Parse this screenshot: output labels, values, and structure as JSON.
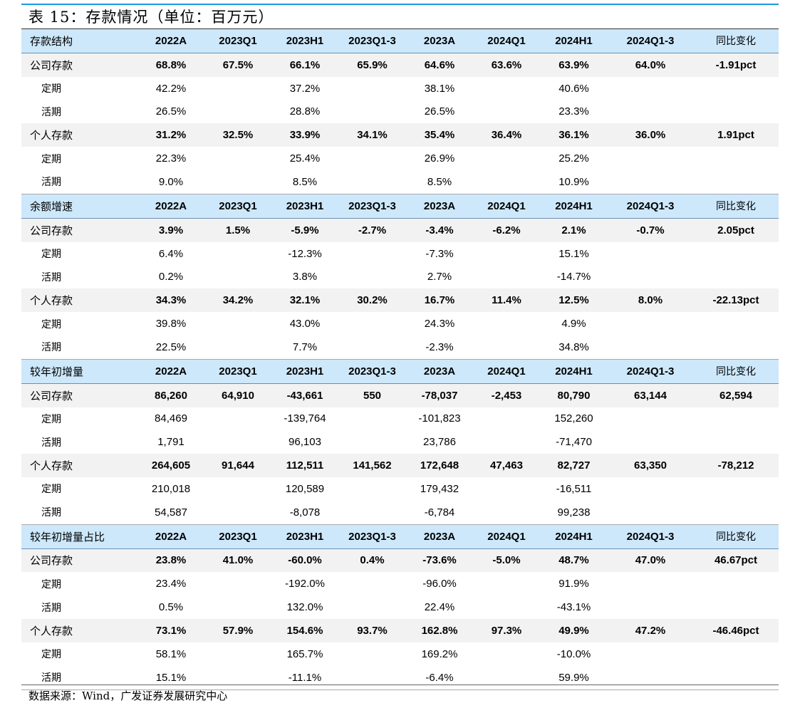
{
  "title": "表 15：存款情况（单位：百万元）",
  "columns": [
    "2022A",
    "2023Q1",
    "2023H1",
    "2023Q1-3",
    "2023A",
    "2024Q1",
    "2024H1",
    "2024Q1-3",
    "同比变化"
  ],
  "sections": [
    {
      "header": "存款结构",
      "rows": [
        {
          "type": "main",
          "label": "公司存款",
          "values": [
            "68.8%",
            "67.5%",
            "66.1%",
            "65.9%",
            "64.6%",
            "63.6%",
            "63.9%",
            "64.0%",
            "-1.91pct"
          ]
        },
        {
          "type": "sub",
          "label": "定期",
          "values": [
            "42.2%",
            "",
            "37.2%",
            "",
            "38.1%",
            "",
            "40.6%",
            "",
            ""
          ]
        },
        {
          "type": "sub",
          "label": "活期",
          "values": [
            "26.5%",
            "",
            "28.8%",
            "",
            "26.5%",
            "",
            "23.3%",
            "",
            ""
          ]
        },
        {
          "type": "main",
          "label": "个人存款",
          "values": [
            "31.2%",
            "32.5%",
            "33.9%",
            "34.1%",
            "35.4%",
            "36.4%",
            "36.1%",
            "36.0%",
            "1.91pct"
          ]
        },
        {
          "type": "sub",
          "label": "定期",
          "values": [
            "22.3%",
            "",
            "25.4%",
            "",
            "26.9%",
            "",
            "25.2%",
            "",
            ""
          ]
        },
        {
          "type": "sub",
          "label": "活期",
          "values": [
            "9.0%",
            "",
            "8.5%",
            "",
            "8.5%",
            "",
            "10.9%",
            "",
            ""
          ]
        }
      ]
    },
    {
      "header": "余额增速",
      "rows": [
        {
          "type": "main",
          "label": "公司存款",
          "values": [
            "3.9%",
            "1.5%",
            "-5.9%",
            "-2.7%",
            "-3.4%",
            "-6.2%",
            "2.1%",
            "-0.7%",
            "2.05pct"
          ]
        },
        {
          "type": "sub",
          "label": "定期",
          "values": [
            "6.4%",
            "",
            "-12.3%",
            "",
            "-7.3%",
            "",
            "15.1%",
            "",
            ""
          ]
        },
        {
          "type": "sub",
          "label": "活期",
          "values": [
            "0.2%",
            "",
            "3.8%",
            "",
            "2.7%",
            "",
            "-14.7%",
            "",
            ""
          ]
        },
        {
          "type": "main",
          "label": "个人存款",
          "values": [
            "34.3%",
            "34.2%",
            "32.1%",
            "30.2%",
            "16.7%",
            "11.4%",
            "12.5%",
            "8.0%",
            "-22.13pct"
          ]
        },
        {
          "type": "sub",
          "label": "定期",
          "values": [
            "39.8%",
            "",
            "43.0%",
            "",
            "24.3%",
            "",
            "4.9%",
            "",
            ""
          ]
        },
        {
          "type": "sub",
          "label": "活期",
          "values": [
            "22.5%",
            "",
            "7.7%",
            "",
            "-2.3%",
            "",
            "34.8%",
            "",
            ""
          ]
        }
      ]
    },
    {
      "header": "较年初增量",
      "rows": [
        {
          "type": "main",
          "label": "公司存款",
          "values": [
            "86,260",
            "64,910",
            "-43,661",
            "550",
            "-78,037",
            "-2,453",
            "80,790",
            "63,144",
            "62,594"
          ]
        },
        {
          "type": "sub",
          "label": "定期",
          "values": [
            "84,469",
            "",
            "-139,764",
            "",
            "-101,823",
            "",
            "152,260",
            "",
            ""
          ]
        },
        {
          "type": "sub",
          "label": "活期",
          "values": [
            "1,791",
            "",
            "96,103",
            "",
            "23,786",
            "",
            "-71,470",
            "",
            ""
          ]
        },
        {
          "type": "main",
          "label": "个人存款",
          "values": [
            "264,605",
            "91,644",
            "112,511",
            "141,562",
            "172,648",
            "47,463",
            "82,727",
            "63,350",
            "-78,212"
          ]
        },
        {
          "type": "sub",
          "label": "定期",
          "values": [
            "210,018",
            "",
            "120,589",
            "",
            "179,432",
            "",
            "-16,511",
            "",
            ""
          ]
        },
        {
          "type": "sub",
          "label": "活期",
          "values": [
            "54,587",
            "",
            "-8,078",
            "",
            "-6,784",
            "",
            "99,238",
            "",
            ""
          ]
        }
      ]
    },
    {
      "header": "较年初增量占比",
      "rows": [
        {
          "type": "main",
          "label": "公司存款",
          "values": [
            "23.8%",
            "41.0%",
            "-60.0%",
            "0.4%",
            "-73.6%",
            "-5.0%",
            "48.7%",
            "47.0%",
            "46.67pct"
          ]
        },
        {
          "type": "sub",
          "label": "定期",
          "values": [
            "23.4%",
            "",
            "-192.0%",
            "",
            "-96.0%",
            "",
            "91.9%",
            "",
            ""
          ]
        },
        {
          "type": "sub",
          "label": "活期",
          "values": [
            "0.5%",
            "",
            "132.0%",
            "",
            "22.4%",
            "",
            "-43.1%",
            "",
            ""
          ]
        },
        {
          "type": "main",
          "label": "个人存款",
          "values": [
            "73.1%",
            "57.9%",
            "154.6%",
            "93.7%",
            "162.8%",
            "97.3%",
            "49.9%",
            "47.2%",
            "-46.46pct"
          ]
        },
        {
          "type": "sub",
          "label": "定期",
          "values": [
            "58.1%",
            "",
            "165.7%",
            "",
            "169.2%",
            "",
            "-10.0%",
            "",
            ""
          ]
        },
        {
          "type": "sub",
          "label": "活期",
          "values": [
            "15.1%",
            "",
            "-11.1%",
            "",
            "-6.4%",
            "",
            "59.9%",
            "",
            ""
          ]
        }
      ]
    }
  ],
  "footer": "数据来源：Wind，广发证券发展研究中心",
  "colors": {
    "header_bg": "#cde8fb",
    "main_row_bg": "#f2f2f2",
    "accent_line": "#1a9be0"
  }
}
